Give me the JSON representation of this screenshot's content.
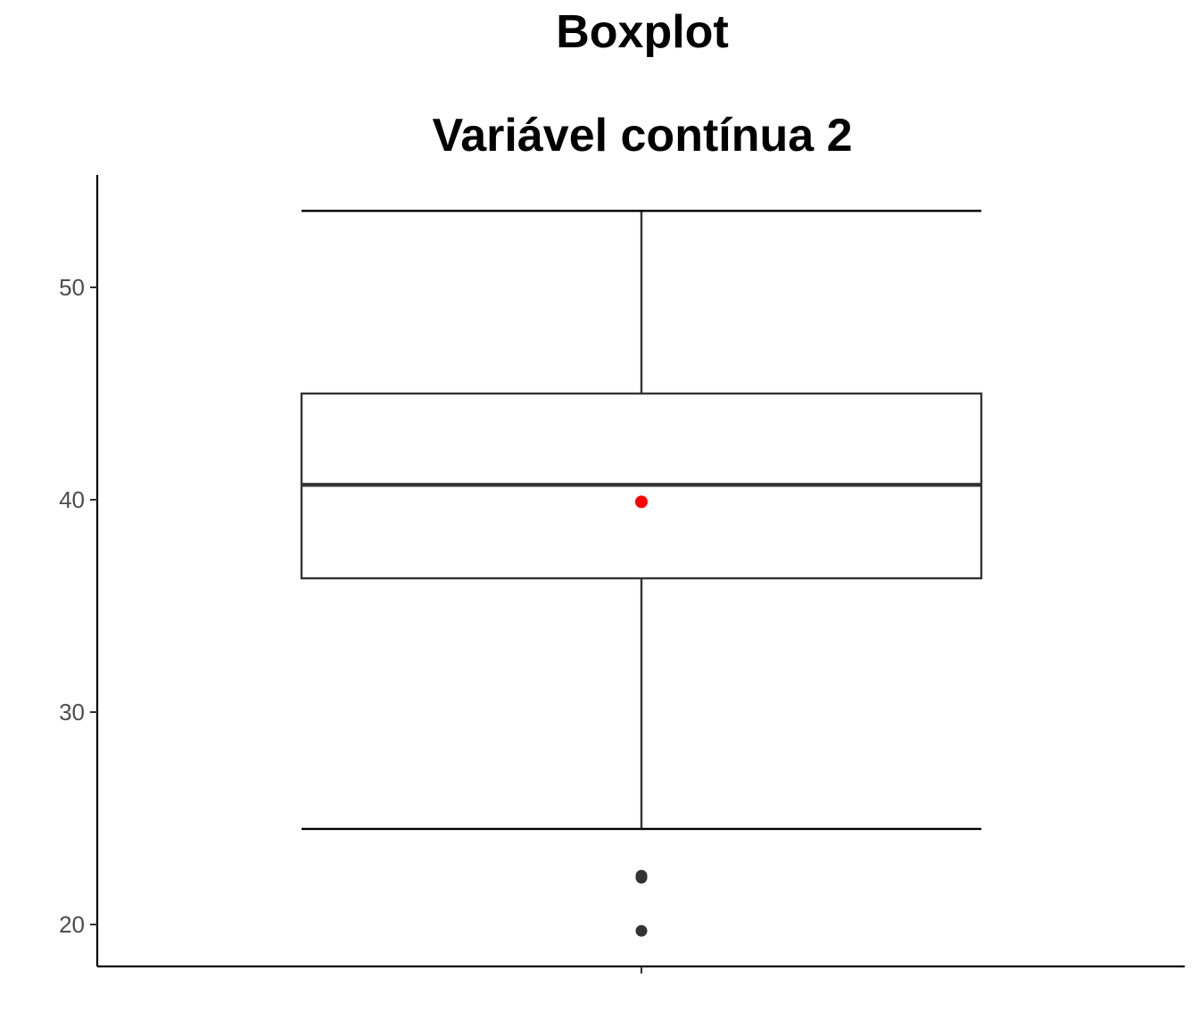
{
  "chart_data": {
    "type": "boxplot",
    "title": "Boxplot",
    "subtitle": "Variável contínua 2",
    "xlabel": "",
    "ylabel": "",
    "ylim": [
      17.9,
      55.4
    ],
    "yticks": [
      20,
      30,
      40,
      50
    ],
    "grid": false,
    "legend": "none",
    "box": {
      "whisker_low": 24.5,
      "q1": 36.3,
      "median": 40.7,
      "q3": 45.0,
      "whisker_high": 53.6,
      "mean": 39.9,
      "outliers": [
        22.2,
        22.3,
        19.7
      ]
    },
    "colors": {
      "box_stroke": "#333333",
      "mean_point": "#ff0000",
      "outlier_point": "#333333",
      "axis": "#000000"
    }
  }
}
